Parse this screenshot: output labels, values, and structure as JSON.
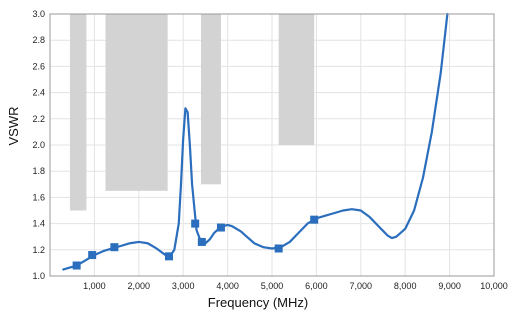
{
  "chart_data": {
    "type": "line",
    "title": "",
    "xlabel": "Frequency (MHz)",
    "ylabel": "VSWR",
    "xlim": [
      0,
      10000
    ],
    "ylim": [
      1.0,
      3.0
    ],
    "x_ticks": [
      1000,
      2000,
      3000,
      4000,
      5000,
      6000,
      7000,
      8000,
      9000,
      10000
    ],
    "x_tick_labels": [
      "1,000",
      "2,000",
      "3,000",
      "4,000",
      "5,000",
      "6,000",
      "7,000",
      "8,000",
      "9,000",
      "10,000"
    ],
    "y_ticks": [
      1.0,
      1.2,
      1.4,
      1.6,
      1.8,
      2.0,
      2.2,
      2.4,
      2.6,
      2.8,
      3.0
    ],
    "y_tick_labels": [
      "1.0",
      "1.2",
      "1.4",
      "1.6",
      "1.8",
      "2.0",
      "2.2",
      "2.4",
      "2.6",
      "2.8",
      "3.0"
    ],
    "grid": true,
    "line_color": "#2a6ebd",
    "marker_color": "#2a6ebd",
    "band_color": "#d3d3d3",
    "series": [
      {
        "x": [
          300,
          400,
          600,
          800,
          1000,
          1200,
          1400,
          1600,
          1800,
          2000,
          2200,
          2400,
          2600,
          2700,
          2800,
          2900,
          2950,
          3000,
          3050,
          3100,
          3150,
          3200,
          3300,
          3400,
          3500,
          3600,
          3700,
          3800,
          3900,
          4000,
          4100,
          4200,
          4300,
          4400,
          4500,
          4600,
          4800,
          5000,
          5200,
          5400,
          5600,
          5800,
          6000,
          6200,
          6400,
          6600,
          6800,
          7000,
          7200,
          7400,
          7600,
          7700,
          7800,
          8000,
          8200,
          8400,
          8600,
          8800,
          8950
        ],
        "y": [
          1.05,
          1.06,
          1.08,
          1.12,
          1.16,
          1.19,
          1.21,
          1.23,
          1.25,
          1.26,
          1.25,
          1.21,
          1.16,
          1.15,
          1.2,
          1.4,
          1.7,
          2.05,
          2.28,
          2.25,
          2.0,
          1.7,
          1.35,
          1.26,
          1.25,
          1.28,
          1.33,
          1.36,
          1.38,
          1.39,
          1.38,
          1.36,
          1.34,
          1.31,
          1.28,
          1.25,
          1.22,
          1.21,
          1.22,
          1.26,
          1.33,
          1.4,
          1.44,
          1.46,
          1.48,
          1.5,
          1.51,
          1.5,
          1.45,
          1.38,
          1.31,
          1.29,
          1.3,
          1.36,
          1.5,
          1.75,
          2.1,
          2.55,
          3.0
        ]
      }
    ],
    "markers": [
      {
        "x": 600,
        "y": 1.08
      },
      {
        "x": 950,
        "y": 1.16
      },
      {
        "x": 1450,
        "y": 1.22
      },
      {
        "x": 2680,
        "y": 1.15
      },
      {
        "x": 3270,
        "y": 1.4
      },
      {
        "x": 3420,
        "y": 1.26
      },
      {
        "x": 3850,
        "y": 1.37
      },
      {
        "x": 5150,
        "y": 1.21
      },
      {
        "x": 5950,
        "y": 1.43
      }
    ],
    "bands": [
      {
        "x0": 450,
        "x1": 820,
        "y_bottom": 1.5
      },
      {
        "x0": 1250,
        "x1": 2650,
        "y_bottom": 1.65
      },
      {
        "x0": 3400,
        "x1": 3850,
        "y_bottom": 1.7
      },
      {
        "x0": 5150,
        "x1": 5950,
        "y_bottom": 2.0
      }
    ]
  }
}
